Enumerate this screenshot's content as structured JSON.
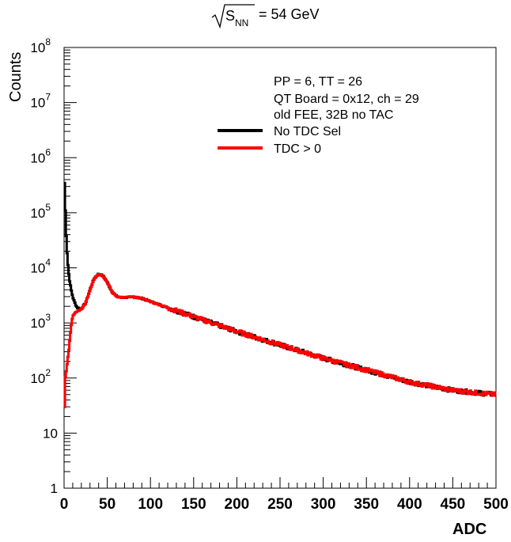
{
  "chart_data": {
    "type": "line",
    "title": "√S_NN = 54 GeV",
    "title_parts": {
      "root_label": "S",
      "subscript": "NN",
      "value": "= 54 GeV"
    },
    "xlabel": "ADC",
    "ylabel": "Counts",
    "xlim": [
      0,
      500
    ],
    "ylim": [
      1,
      100000000
    ],
    "yscale": "log",
    "grid": false,
    "legend_position": "top-right",
    "x_ticks": [
      {
        "value": 0,
        "label": "0"
      },
      {
        "value": 50,
        "label": "50"
      },
      {
        "value": 100,
        "label": "100"
      },
      {
        "value": 150,
        "label": "150"
      },
      {
        "value": 200,
        "label": "200"
      },
      {
        "value": 250,
        "label": "250"
      },
      {
        "value": 300,
        "label": "300"
      },
      {
        "value": 350,
        "label": "350"
      },
      {
        "value": 400,
        "label": "400"
      },
      {
        "value": 450,
        "label": "450"
      },
      {
        "value": 500,
        "label": "500"
      }
    ],
    "y_ticks": [
      {
        "value": 1,
        "base": "1",
        "exp": ""
      },
      {
        "value": 10,
        "base": "10",
        "exp": ""
      },
      {
        "value": 100,
        "base": "10",
        "exp": "2"
      },
      {
        "value": 1000,
        "base": "10",
        "exp": "3"
      },
      {
        "value": 10000,
        "base": "10",
        "exp": "4"
      },
      {
        "value": 100000,
        "base": "10",
        "exp": "5"
      },
      {
        "value": 1000000,
        "base": "10",
        "exp": "6"
      },
      {
        "value": 10000000,
        "base": "10",
        "exp": "7"
      },
      {
        "value": 100000000,
        "base": "10",
        "exp": "8"
      }
    ],
    "annotations": [
      "PP = 6, TT = 26",
      "QT Board = 0x12, ch = 29",
      "old FEE, 32B no TAC"
    ],
    "series": [
      {
        "name": "No TDC Sel",
        "color": "#000000",
        "x": [
          0,
          1,
          2,
          3,
          4,
          5,
          6,
          8,
          10,
          12,
          15,
          20,
          25,
          30,
          35,
          40,
          45,
          50,
          55,
          60,
          65,
          70,
          80,
          90,
          100,
          120,
          150,
          200,
          250,
          300,
          350,
          400,
          450,
          500
        ],
        "y": [
          600000,
          200000,
          60000,
          25000,
          14000,
          9000,
          6500,
          4200,
          3000,
          2400,
          1900,
          1800,
          2300,
          4000,
          6500,
          7800,
          7200,
          5500,
          3800,
          3100,
          2900,
          2900,
          2950,
          2800,
          2450,
          1900,
          1300,
          700,
          400,
          230,
          140,
          85,
          60,
          50
        ]
      },
      {
        "name": "TDC > 0",
        "color": "#ff0000",
        "x": [
          0,
          0.5,
          1,
          2,
          3,
          4,
          5,
          6,
          8,
          10,
          12,
          15,
          20,
          25,
          30,
          35,
          40,
          45,
          50,
          55,
          60,
          65,
          70,
          80,
          90,
          100,
          120,
          150,
          200,
          250,
          300,
          350,
          400,
          450,
          500
        ],
        "y": [
          1,
          30,
          90,
          120,
          150,
          200,
          280,
          400,
          800,
          1300,
          1500,
          1600,
          1750,
          2300,
          4000,
          6500,
          7800,
          7200,
          5500,
          3800,
          3100,
          2900,
          2900,
          2950,
          2800,
          2450,
          1900,
          1300,
          700,
          400,
          230,
          140,
          85,
          60,
          50
        ]
      }
    ]
  }
}
